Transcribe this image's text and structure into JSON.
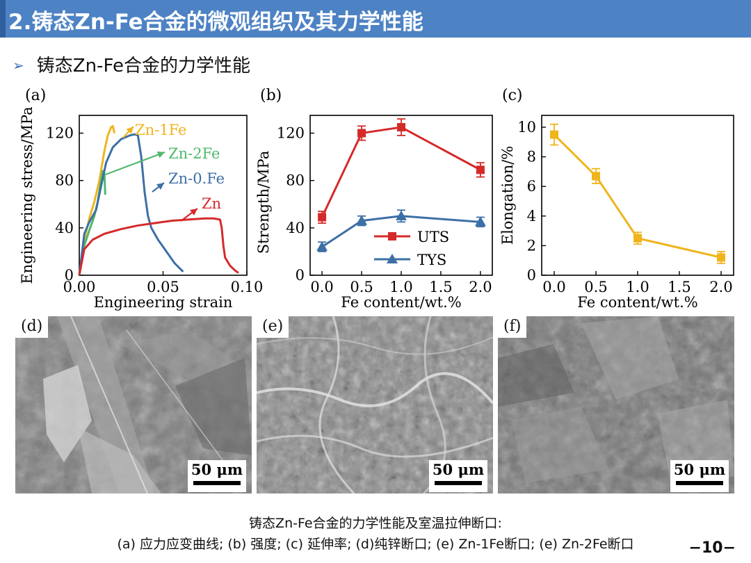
{
  "header": {
    "title": "2.铸态Zn-Fe合金的微观组织及其力学性能"
  },
  "subtitle": {
    "bullet": "➢",
    "text": "铸态Zn-Fe合金的力学性能"
  },
  "panels": {
    "a": {
      "label": "(a)"
    },
    "b": {
      "label": "(b)"
    },
    "c": {
      "label": "(c)"
    },
    "d": {
      "label": "(d)",
      "scale": "50 μm"
    },
    "e": {
      "label": "(e)",
      "scale": "50 μm"
    },
    "f": {
      "label": "(f)",
      "scale": "50 μm"
    }
  },
  "caption": {
    "line1": "铸态Zn-Fe合金的力学性能及室温拉伸断口:",
    "line2": "(a) 应力应变曲线; (b) 强度; (c) 延伸率; (d)纯锌断口; (e) Zn-1Fe断口; (e) Zn-2Fe断口"
  },
  "page_number": "−10−",
  "chart_data": [
    {
      "type": "line",
      "xlabel": "Engineering strain",
      "ylabel": "Engineering stress/MPa",
      "xlim": [
        0,
        0.1
      ],
      "ylim": [
        0,
        135
      ],
      "xticks": [
        "0.00",
        "0.05",
        "0.10"
      ],
      "yticks": [
        "0",
        "40",
        "80",
        "120"
      ],
      "series": [
        {
          "name": "Zn-1Fe",
          "color": "#f0b41c",
          "x": [
            0.0,
            0.003,
            0.006,
            0.009,
            0.012,
            0.015,
            0.017,
            0.019,
            0.02,
            0.021
          ],
          "y": [
            0,
            30,
            48,
            62,
            80,
            105,
            118,
            125,
            126,
            120
          ]
        },
        {
          "name": "Zn-2Fe",
          "color": "#4fb86a",
          "x": [
            0.0,
            0.003,
            0.006,
            0.009,
            0.011,
            0.013,
            0.014,
            0.015,
            0.0155
          ],
          "y": [
            0,
            25,
            38,
            50,
            62,
            80,
            88,
            86,
            68
          ]
        },
        {
          "name": "Zn-0.Fe",
          "color": "#3d6fa6",
          "x": [
            0.0,
            0.003,
            0.006,
            0.01,
            0.013,
            0.016,
            0.02,
            0.025,
            0.03,
            0.033,
            0.035,
            0.037,
            0.039,
            0.041,
            0.043,
            0.047,
            0.052,
            0.057,
            0.062
          ],
          "y": [
            0,
            35,
            45,
            55,
            75,
            95,
            108,
            115,
            118,
            119,
            118,
            100,
            70,
            50,
            40,
            30,
            20,
            10,
            3
          ]
        },
        {
          "name": "Zn",
          "color": "#d42a2a",
          "x": [
            0.0,
            0.003,
            0.008,
            0.015,
            0.025,
            0.035,
            0.045,
            0.055,
            0.065,
            0.075,
            0.08,
            0.084,
            0.085,
            0.086,
            0.087,
            0.09,
            0.093,
            0.095
          ],
          "y": [
            0,
            22,
            30,
            35,
            39,
            42,
            44,
            46,
            47,
            48,
            48,
            47,
            40,
            25,
            15,
            8,
            4,
            2
          ]
        }
      ]
    },
    {
      "type": "line",
      "xlabel": "Fe content/wt.%",
      "ylabel": "Strength/MPa",
      "xlim": [
        -0.15,
        2.15
      ],
      "ylim": [
        0,
        135
      ],
      "xticks": [
        "0.0",
        "0.5",
        "1.0",
        "1.5",
        "2.0"
      ],
      "yticks": [
        "0",
        "40",
        "80",
        "120"
      ],
      "legend": "bottom",
      "series": [
        {
          "name": "UTS",
          "color": "#d42a2a",
          "marker": "square",
          "x": [
            0,
            0.5,
            1.0,
            2.0
          ],
          "y": [
            49,
            120,
            125,
            89
          ],
          "err": [
            5,
            6,
            7,
            6
          ]
        },
        {
          "name": "TYS",
          "color": "#3d6fa6",
          "marker": "triangle",
          "x": [
            0,
            0.5,
            1.0,
            2.0
          ],
          "y": [
            24,
            46,
            50,
            45
          ],
          "err": [
            4,
            4,
            5,
            4
          ]
        }
      ]
    },
    {
      "type": "line",
      "xlabel": "Fe content/wt.%",
      "ylabel": "Elongation/%",
      "xlim": [
        -0.15,
        2.15
      ],
      "ylim": [
        0,
        10.8
      ],
      "xticks": [
        "0.0",
        "0.5",
        "1.0",
        "1.5",
        "2.0"
      ],
      "yticks": [
        "0",
        "2",
        "4",
        "6",
        "8",
        "10"
      ],
      "series": [
        {
          "color": "#f0b41c",
          "marker": "square",
          "x": [
            0,
            0.5,
            1.0,
            2.0
          ],
          "y": [
            9.5,
            6.7,
            2.5,
            1.2
          ],
          "err": [
            0.7,
            0.5,
            0.4,
            0.4
          ]
        }
      ]
    }
  ],
  "colors": {
    "header_bar": "#4d82c4",
    "zn": "#d42a2a",
    "zn1fe": "#f0b41c",
    "zn2fe": "#4fb86a",
    "zn0fe": "#3d6fa6"
  },
  "icons": {
    "bullet": "arrow-bullet-icon"
  }
}
